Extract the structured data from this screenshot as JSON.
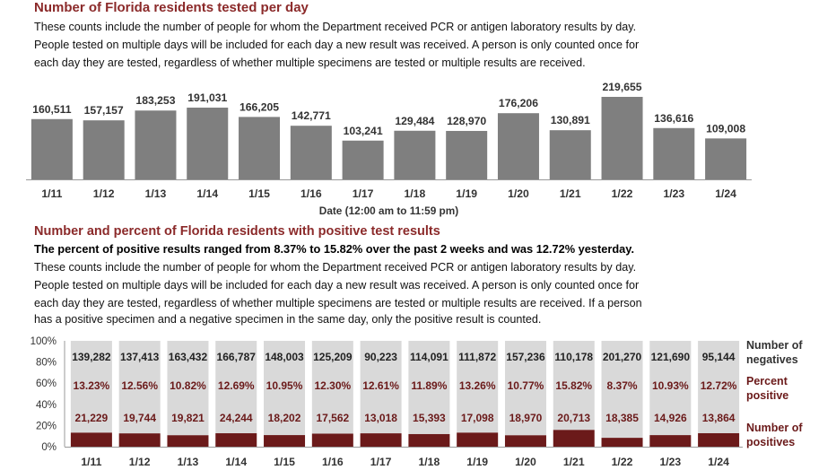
{
  "section1": {
    "title": "Number of Florida residents tested per day",
    "desc1": "These counts include the number of people for whom the Department received PCR or antigen laboratory results by day.",
    "desc2": "People tested on multiple days will be included for each day a new result was received. A person is only counted once for",
    "desc3": "each day they are tested, regardless of whether multiple specimens are tested or multiple results are received."
  },
  "section2": {
    "title": "Number and percent of Florida residents with positive test results",
    "summary": "The percent of positive results ranged from 8.37% to 15.82% over the past 2 weeks and was 12.72% yesterday.",
    "desc1": "These counts include the number of people for whom the Department received PCR or antigen laboratory results by day.",
    "desc2": "People tested on multiple days will be included for each day a new result was received. A person is only counted once for",
    "desc3": "each day they are tested, regardless of whether multiple specimens are tested or multiple results are received. If a person",
    "desc4": "has a positive specimen and a negative specimen in the same day, only the positive result is counted."
  },
  "colors": {
    "bar_gray": "#7f7f7f",
    "neg_gray": "#d9d9d9",
    "pos_maroon": "#6b1a1a",
    "title_red": "#8b2a2a"
  },
  "chart_data": [
    {
      "type": "bar",
      "title": "",
      "xlabel": "Date (12:00 am to 11:59 pm)",
      "categories": [
        "1/11",
        "1/12",
        "1/13",
        "1/14",
        "1/15",
        "1/16",
        "1/17",
        "1/18",
        "1/19",
        "1/20",
        "1/21",
        "1/22",
        "1/23",
        "1/24"
      ],
      "values": [
        160511,
        157157,
        183253,
        191031,
        166205,
        142771,
        103241,
        129484,
        128970,
        176206,
        130891,
        219655,
        136616,
        109008
      ],
      "value_labels": [
        "160,511",
        "157,157",
        "183,253",
        "191,031",
        "166,205",
        "142,771",
        "103,241",
        "129,484",
        "128,970",
        "176,206",
        "130,891",
        "219,655",
        "136,616",
        "109,008"
      ],
      "ylim": [
        0,
        230000
      ]
    },
    {
      "type": "bar",
      "stacked_percent": true,
      "categories": [
        "1/11",
        "1/12",
        "1/13",
        "1/14",
        "1/15",
        "1/16",
        "1/17",
        "1/18",
        "1/19",
        "1/20",
        "1/21",
        "1/22",
        "1/23",
        "1/24"
      ],
      "yticks": [
        "100%",
        "80%",
        "60%",
        "40%",
        "20%",
        "0%"
      ],
      "series": [
        {
          "name": "Number of negatives",
          "values": [
            139282,
            137413,
            163432,
            166787,
            148003,
            125209,
            90223,
            114091,
            111872,
            157236,
            110178,
            201270,
            121690,
            95144
          ],
          "labels": [
            "139,282",
            "137,413",
            "163,432",
            "166,787",
            "148,003",
            "125,209",
            "90,223",
            "114,091",
            "111,872",
            "157,236",
            "110,178",
            "201,270",
            "121,690",
            "95,144"
          ]
        },
        {
          "name": "Number of positives",
          "values": [
            21229,
            19744,
            19821,
            24244,
            18202,
            17562,
            13018,
            15393,
            17098,
            18970,
            20713,
            18385,
            14926,
            13864
          ],
          "labels": [
            "21,229",
            "19,744",
            "19,821",
            "24,244",
            "18,202",
            "17,562",
            "13,018",
            "15,393",
            "17,098",
            "18,970",
            "20,713",
            "18,385",
            "14,926",
            "13,864"
          ]
        }
      ],
      "percent_positive": {
        "name": "Percent positive",
        "values": [
          13.23,
          12.56,
          10.82,
          12.69,
          10.95,
          12.3,
          12.61,
          11.89,
          13.26,
          10.77,
          15.82,
          8.37,
          10.93,
          12.72
        ],
        "labels": [
          "13.23%",
          "12.56%",
          "10.82%",
          "12.69%",
          "10.95%",
          "12.30%",
          "12.61%",
          "11.89%",
          "13.26%",
          "10.77%",
          "15.82%",
          "8.37%",
          "10.93%",
          "12.72%"
        ]
      },
      "legend": {
        "negatives": [
          "Number of",
          "negatives"
        ],
        "percent": [
          "Percent",
          "positive"
        ],
        "positives": [
          "Number of",
          "positives"
        ]
      }
    }
  ]
}
